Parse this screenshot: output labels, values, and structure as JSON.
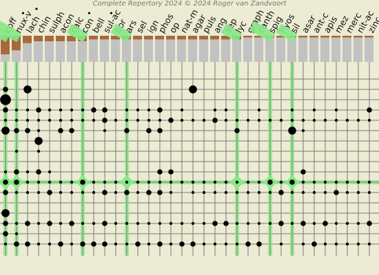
{
  "credit": "Complete Repertory 2024 © 2024 Roger van Zandvoort",
  "colors": {
    "background": "#ecebd3",
    "bar_brown": "#a8693a",
    "bar_gray": "#c2c2c2",
    "grid": "#777777",
    "highlight": "#86e886",
    "dot": "#000000"
  },
  "remedies": [
    {
      "name": "coff",
      "marked": true,
      "highlighted": true,
      "score": [
        10,
        4
      ]
    },
    {
      "name": "nux-v",
      "marked": true,
      "highlighted": true,
      "score": [
        9,
        7
      ]
    },
    {
      "name": "lach",
      "highlighted": false,
      "score": [
        4,
        10
      ]
    },
    {
      "name": "chin",
      "highlighted": false,
      "score": [
        3,
        11
      ]
    },
    {
      "name": "sulph",
      "highlighted": false,
      "score": [
        3,
        11
      ]
    },
    {
      "name": "acon",
      "highlighted": false,
      "score": [
        3,
        11
      ]
    },
    {
      "name": "calc",
      "marked": true,
      "highlighted": false,
      "score": [
        3,
        11
      ]
    },
    {
      "name": "con",
      "highlighted": true,
      "score": [
        3,
        11
      ]
    },
    {
      "name": "bell",
      "marked": true,
      "highlighted": false,
      "score": [
        2,
        12
      ]
    },
    {
      "name": "sul-ac",
      "highlighted": false,
      "score": [
        2,
        12
      ]
    },
    {
      "name": "bor",
      "highlighted": false,
      "score": [
        2,
        12
      ]
    },
    {
      "name": "ars",
      "highlighted": true,
      "score": [
        2,
        12
      ]
    },
    {
      "name": "sel",
      "highlighted": false,
      "score": [
        2,
        12
      ]
    },
    {
      "name": "ign",
      "highlighted": false,
      "score": [
        2,
        12
      ]
    },
    {
      "name": "phos",
      "highlighted": false,
      "score": [
        2,
        12
      ]
    },
    {
      "name": "op",
      "highlighted": false,
      "score": [
        2,
        12
      ]
    },
    {
      "name": "nat-m",
      "highlighted": false,
      "score": [
        2,
        12
      ]
    },
    {
      "name": "agar",
      "highlighted": false,
      "score": [
        2,
        12
      ]
    },
    {
      "name": "puls",
      "highlighted": false,
      "score": [
        2,
        12
      ]
    },
    {
      "name": "ang",
      "highlighted": false,
      "score": [
        2,
        12
      ]
    },
    {
      "name": "sep",
      "highlighted": false,
      "score": [
        2,
        12
      ]
    },
    {
      "name": "lyc",
      "highlighted": true,
      "score": [
        2,
        12
      ]
    },
    {
      "name": "graph",
      "highlighted": false,
      "score": [
        1,
        13
      ]
    },
    {
      "name": "canth",
      "highlighted": false,
      "score": [
        1,
        13
      ]
    },
    {
      "name": "spig",
      "highlighted": true,
      "score": [
        1,
        13
      ]
    },
    {
      "name": "hyos",
      "highlighted": false,
      "score": [
        1,
        13
      ]
    },
    {
      "name": "sil",
      "highlighted": true,
      "score": [
        1,
        13
      ]
    },
    {
      "name": "asar",
      "highlighted": false,
      "score": [
        1,
        13
      ]
    },
    {
      "name": "ant-c",
      "highlighted": false,
      "score": [
        1,
        13
      ]
    },
    {
      "name": "apis",
      "highlighted": false,
      "score": [
        1,
        13
      ]
    },
    {
      "name": "mez",
      "highlighted": false,
      "score": [
        1,
        13
      ]
    },
    {
      "name": "merc",
      "highlighted": false,
      "score": [
        1,
        13
      ]
    },
    {
      "name": "nit-ac",
      "highlighted": false,
      "score": [
        1,
        13
      ]
    },
    {
      "name": "zinc",
      "highlighted": false,
      "score": [
        1,
        13
      ]
    }
  ],
  "highlighted_rows": [
    10
  ],
  "rubric_count": 17,
  "grades": [
    [
      0,
      0,
      0,
      0,
      0,
      0,
      0,
      0,
      0,
      0,
      0,
      0,
      0,
      0,
      0,
      0,
      0,
      0,
      0,
      0,
      0,
      0,
      0,
      0,
      0,
      0,
      0,
      0,
      0,
      0,
      0,
      0,
      0,
      0
    ],
    [
      2,
      0,
      3,
      0,
      0,
      0,
      0,
      0,
      0,
      0,
      0,
      0,
      0,
      0,
      0,
      0,
      0,
      3,
      0,
      0,
      0,
      0,
      0,
      0,
      0,
      0,
      0,
      0,
      0,
      0,
      0,
      0,
      0,
      0
    ],
    [
      4,
      0,
      0,
      0,
      0,
      0,
      0,
      0,
      0,
      0,
      0,
      0,
      0,
      0,
      0,
      0,
      0,
      0,
      0,
      0,
      0,
      0,
      0,
      0,
      0,
      0,
      0,
      0,
      0,
      0,
      0,
      0,
      0,
      0
    ],
    [
      2,
      1,
      1,
      2,
      1,
      1,
      1,
      1,
      2,
      2,
      0,
      1,
      1,
      1,
      2,
      0,
      1,
      0,
      0,
      1,
      1,
      0,
      0,
      1,
      0,
      0,
      1,
      0,
      1,
      0,
      1,
      0,
      0,
      2
    ],
    [
      1,
      1,
      1,
      1,
      1,
      1,
      1,
      1,
      1,
      2,
      1,
      1,
      1,
      1,
      1,
      2,
      1,
      1,
      1,
      2,
      1,
      1,
      1,
      1,
      1,
      1,
      1,
      1,
      1,
      1,
      1,
      1,
      1,
      1
    ],
    [
      3,
      2,
      2,
      1,
      0,
      2,
      2,
      0,
      0,
      1,
      0,
      2,
      0,
      2,
      2,
      0,
      0,
      0,
      0,
      0,
      0,
      2,
      0,
      0,
      0,
      0,
      3,
      1,
      0,
      0,
      0,
      0,
      0,
      0
    ],
    [
      0,
      0,
      0,
      3,
      0,
      0,
      0,
      0,
      0,
      0,
      0,
      0,
      0,
      0,
      0,
      0,
      0,
      0,
      0,
      0,
      0,
      0,
      0,
      0,
      0,
      0,
      0,
      0,
      0,
      0,
      0,
      0,
      0,
      0
    ],
    [
      0,
      1,
      0,
      1,
      0,
      0,
      0,
      0,
      0,
      0,
      0,
      0,
      0,
      0,
      0,
      0,
      0,
      0,
      0,
      0,
      0,
      0,
      0,
      0,
      0,
      0,
      0,
      0,
      0,
      0,
      0,
      0,
      0,
      0
    ],
    [
      0,
      0,
      0,
      0,
      0,
      0,
      0,
      0,
      0,
      0,
      0,
      0,
      0,
      0,
      0,
      0,
      0,
      0,
      0,
      0,
      0,
      0,
      0,
      0,
      0,
      0,
      0,
      0,
      0,
      0,
      0,
      0,
      0,
      0
    ],
    [
      1,
      2,
      1,
      2,
      1,
      0,
      0,
      0,
      0,
      0,
      0,
      0,
      0,
      0,
      2,
      2,
      0,
      0,
      0,
      0,
      0,
      0,
      0,
      0,
      0,
      0,
      0,
      2,
      0,
      0,
      0,
      0,
      0,
      0
    ],
    [
      2,
      2,
      1,
      1,
      1,
      1,
      1,
      2,
      1,
      1,
      1,
      1,
      1,
      1,
      1,
      1,
      1,
      1,
      1,
      1,
      1,
      1,
      1,
      1,
      2,
      1,
      2,
      1,
      1,
      1,
      1,
      1,
      1,
      1
    ],
    [
      2,
      1,
      1,
      1,
      2,
      1,
      1,
      1,
      1,
      2,
      1,
      2,
      1,
      2,
      2,
      1,
      0,
      1,
      1,
      1,
      1,
      1,
      1,
      1,
      1,
      2,
      1,
      1,
      1,
      1,
      2,
      1,
      1,
      1
    ],
    [
      0,
      0,
      0,
      0,
      0,
      0,
      0,
      0,
      0,
      0,
      0,
      0,
      0,
      0,
      0,
      0,
      0,
      0,
      0,
      0,
      0,
      0,
      0,
      0,
      0,
      0,
      0,
      0,
      0,
      0,
      0,
      0,
      0,
      0
    ],
    [
      3,
      0,
      0,
      0,
      0,
      0,
      0,
      0,
      0,
      0,
      0,
      0,
      0,
      0,
      0,
      0,
      0,
      0,
      0,
      0,
      0,
      0,
      0,
      0,
      0,
      0,
      0,
      0,
      0,
      0,
      0,
      0,
      0,
      0
    ],
    [
      2,
      1,
      2,
      1,
      2,
      1,
      2,
      1,
      1,
      2,
      1,
      1,
      1,
      1,
      1,
      1,
      1,
      1,
      1,
      2,
      2,
      1,
      1,
      1,
      1,
      2,
      1,
      2,
      1,
      2,
      1,
      1,
      1,
      2
    ],
    [
      2,
      1,
      0,
      0,
      0,
      0,
      0,
      0,
      0,
      0,
      0,
      0,
      0,
      0,
      0,
      0,
      0,
      0,
      0,
      0,
      0,
      0,
      0,
      0,
      0,
      0,
      0,
      0,
      0,
      0,
      0,
      0,
      0,
      0
    ],
    [
      1,
      2,
      2,
      1,
      1,
      2,
      1,
      2,
      2,
      2,
      1,
      1,
      2,
      1,
      2,
      1,
      2,
      2,
      1,
      1,
      1,
      1,
      2,
      2,
      0,
      1,
      0,
      1,
      2,
      1,
      1,
      1,
      1,
      1
    ]
  ]
}
